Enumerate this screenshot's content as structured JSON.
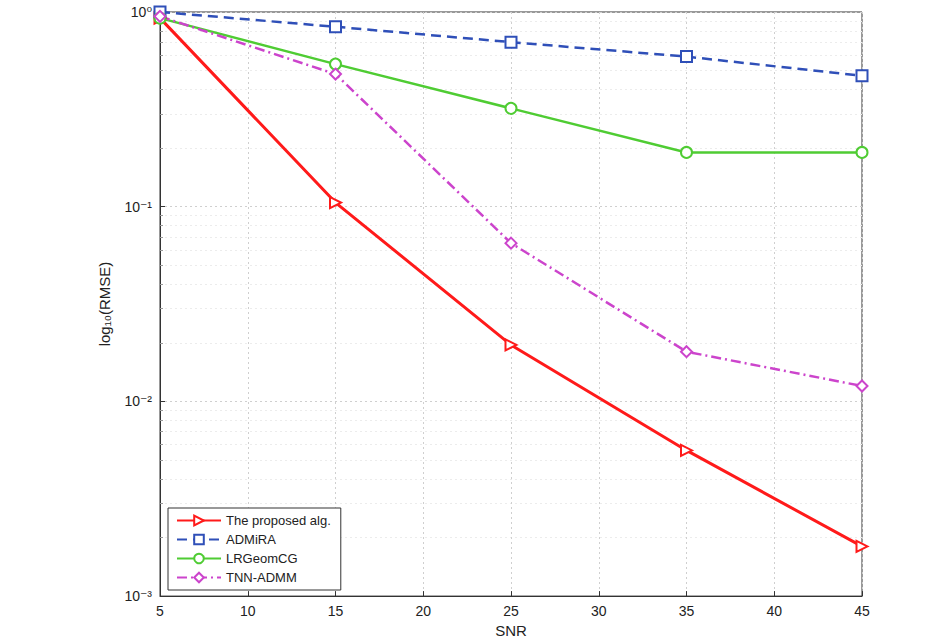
{
  "chart_data": {
    "type": "line",
    "x_label": "SNR",
    "y_label": "log₁₀(RMSE)",
    "x": [
      5,
      15,
      25,
      35,
      45
    ],
    "series": [
      {
        "name": "The proposed alg.",
        "color": "#ff1a1a",
        "marker": "triangle-right",
        "line_style": "solid",
        "values": [
          0.93,
          0.105,
          0.0195,
          0.0056,
          0.0018
        ]
      },
      {
        "name": "ADMiRA",
        "color": "#2f4fb8",
        "marker": "square",
        "line_style": "dashed",
        "values": [
          1.0,
          0.84,
          0.7,
          0.59,
          0.47
        ]
      },
      {
        "name": "LRGeomCG",
        "color": "#4fcc33",
        "marker": "circle",
        "line_style": "solid",
        "values": [
          0.93,
          0.54,
          0.32,
          0.19,
          0.19
        ]
      },
      {
        "name": "TNN-ADMM",
        "color": "#cc44cc",
        "marker": "diamond",
        "line_style": "dashdot",
        "values": [
          0.95,
          0.48,
          0.065,
          0.018,
          0.012
        ]
      }
    ],
    "xlim": [
      5,
      45
    ],
    "xticks": [
      5,
      10,
      15,
      20,
      25,
      30,
      35,
      40,
      45
    ],
    "ylim": [
      0.001,
      1
    ],
    "yticks": [
      {
        "value": 0.001,
        "label": "10⁻³"
      },
      {
        "value": 0.01,
        "label": "10⁻²"
      },
      {
        "value": 0.1,
        "label": "10⁻¹"
      },
      {
        "value": 1,
        "label": "10⁰"
      }
    ],
    "log": "y",
    "grid": true,
    "legend": "lower left"
  }
}
